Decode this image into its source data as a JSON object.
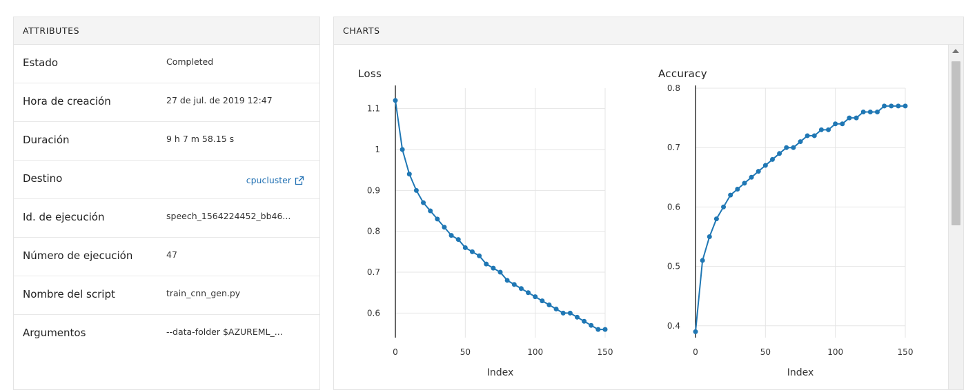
{
  "attributes": {
    "header": "ATTRIBUTES",
    "rows": [
      {
        "label": "Estado",
        "value": "Completed"
      },
      {
        "label": "Hora de creación",
        "value": "27 de jul. de 2019 12:47"
      },
      {
        "label": "Duración",
        "value": "9 h 7 m 58.15 s"
      },
      {
        "label": "Destino",
        "value": "cpucluster"
      },
      {
        "label": "Id. de ejecución",
        "value": "speech_1564224452_bb46..."
      },
      {
        "label": "Número de ejecución",
        "value": "47"
      },
      {
        "label": "Nombre del script",
        "value": "train_cnn_gen.py"
      },
      {
        "label": "Argumentos",
        "value": "--data-folder $AZUREML_..."
      }
    ]
  },
  "charts": {
    "header": "CHARTS",
    "colors": {
      "series": "#1f77b4",
      "grid": "#e5e5e5",
      "axis": "#000000"
    }
  },
  "chart_data": [
    {
      "type": "line",
      "title": "Loss",
      "xlabel": "Index",
      "ylabel": "",
      "xlim": [
        0,
        150
      ],
      "ylim": [
        0.54,
        1.15
      ],
      "xticks": [
        0,
        50,
        100,
        150
      ],
      "yticks": [
        0.6,
        0.7,
        0.8,
        0.9,
        1,
        1.1
      ],
      "ytick_labels": [
        "0.6",
        "0.7",
        "0.8",
        "0.9",
        "1",
        "1.1"
      ],
      "markers": true,
      "grid": true,
      "series": [
        {
          "x": [
            0,
            5,
            10,
            15,
            20,
            25,
            30,
            35,
            40,
            45,
            50,
            55,
            60,
            65,
            70,
            75,
            80,
            85,
            90,
            95,
            100,
            105,
            110,
            115,
            120,
            125,
            130,
            135,
            140,
            145,
            150
          ],
          "y": [
            1.12,
            1.0,
            0.94,
            0.9,
            0.87,
            0.85,
            0.83,
            0.81,
            0.79,
            0.78,
            0.76,
            0.75,
            0.74,
            0.72,
            0.71,
            0.7,
            0.68,
            0.67,
            0.66,
            0.65,
            0.64,
            0.63,
            0.62,
            0.61,
            0.6,
            0.6,
            0.59,
            0.58,
            0.57,
            0.56,
            0.56
          ]
        }
      ]
    },
    {
      "type": "line",
      "title": "Accuracy",
      "xlabel": "Index",
      "ylabel": "",
      "xlim": [
        0,
        150
      ],
      "ylim": [
        0.38,
        0.8
      ],
      "xticks": [
        0,
        50,
        100,
        150
      ],
      "yticks": [
        0.4,
        0.5,
        0.6,
        0.7,
        0.8
      ],
      "ytick_labels": [
        "0.4",
        "0.5",
        "0.6",
        "0.7",
        "0.8"
      ],
      "markers": true,
      "grid": true,
      "series": [
        {
          "x": [
            0,
            5,
            10,
            15,
            20,
            25,
            30,
            35,
            40,
            45,
            50,
            55,
            60,
            65,
            70,
            75,
            80,
            85,
            90,
            95,
            100,
            105,
            110,
            115,
            120,
            125,
            130,
            135,
            140,
            145,
            150
          ],
          "y": [
            0.39,
            0.51,
            0.55,
            0.58,
            0.6,
            0.62,
            0.63,
            0.64,
            0.65,
            0.66,
            0.67,
            0.68,
            0.69,
            0.7,
            0.7,
            0.71,
            0.72,
            0.72,
            0.73,
            0.73,
            0.74,
            0.74,
            0.75,
            0.75,
            0.76,
            0.76,
            0.76,
            0.77,
            0.77,
            0.77,
            0.77
          ]
        }
      ]
    }
  ]
}
